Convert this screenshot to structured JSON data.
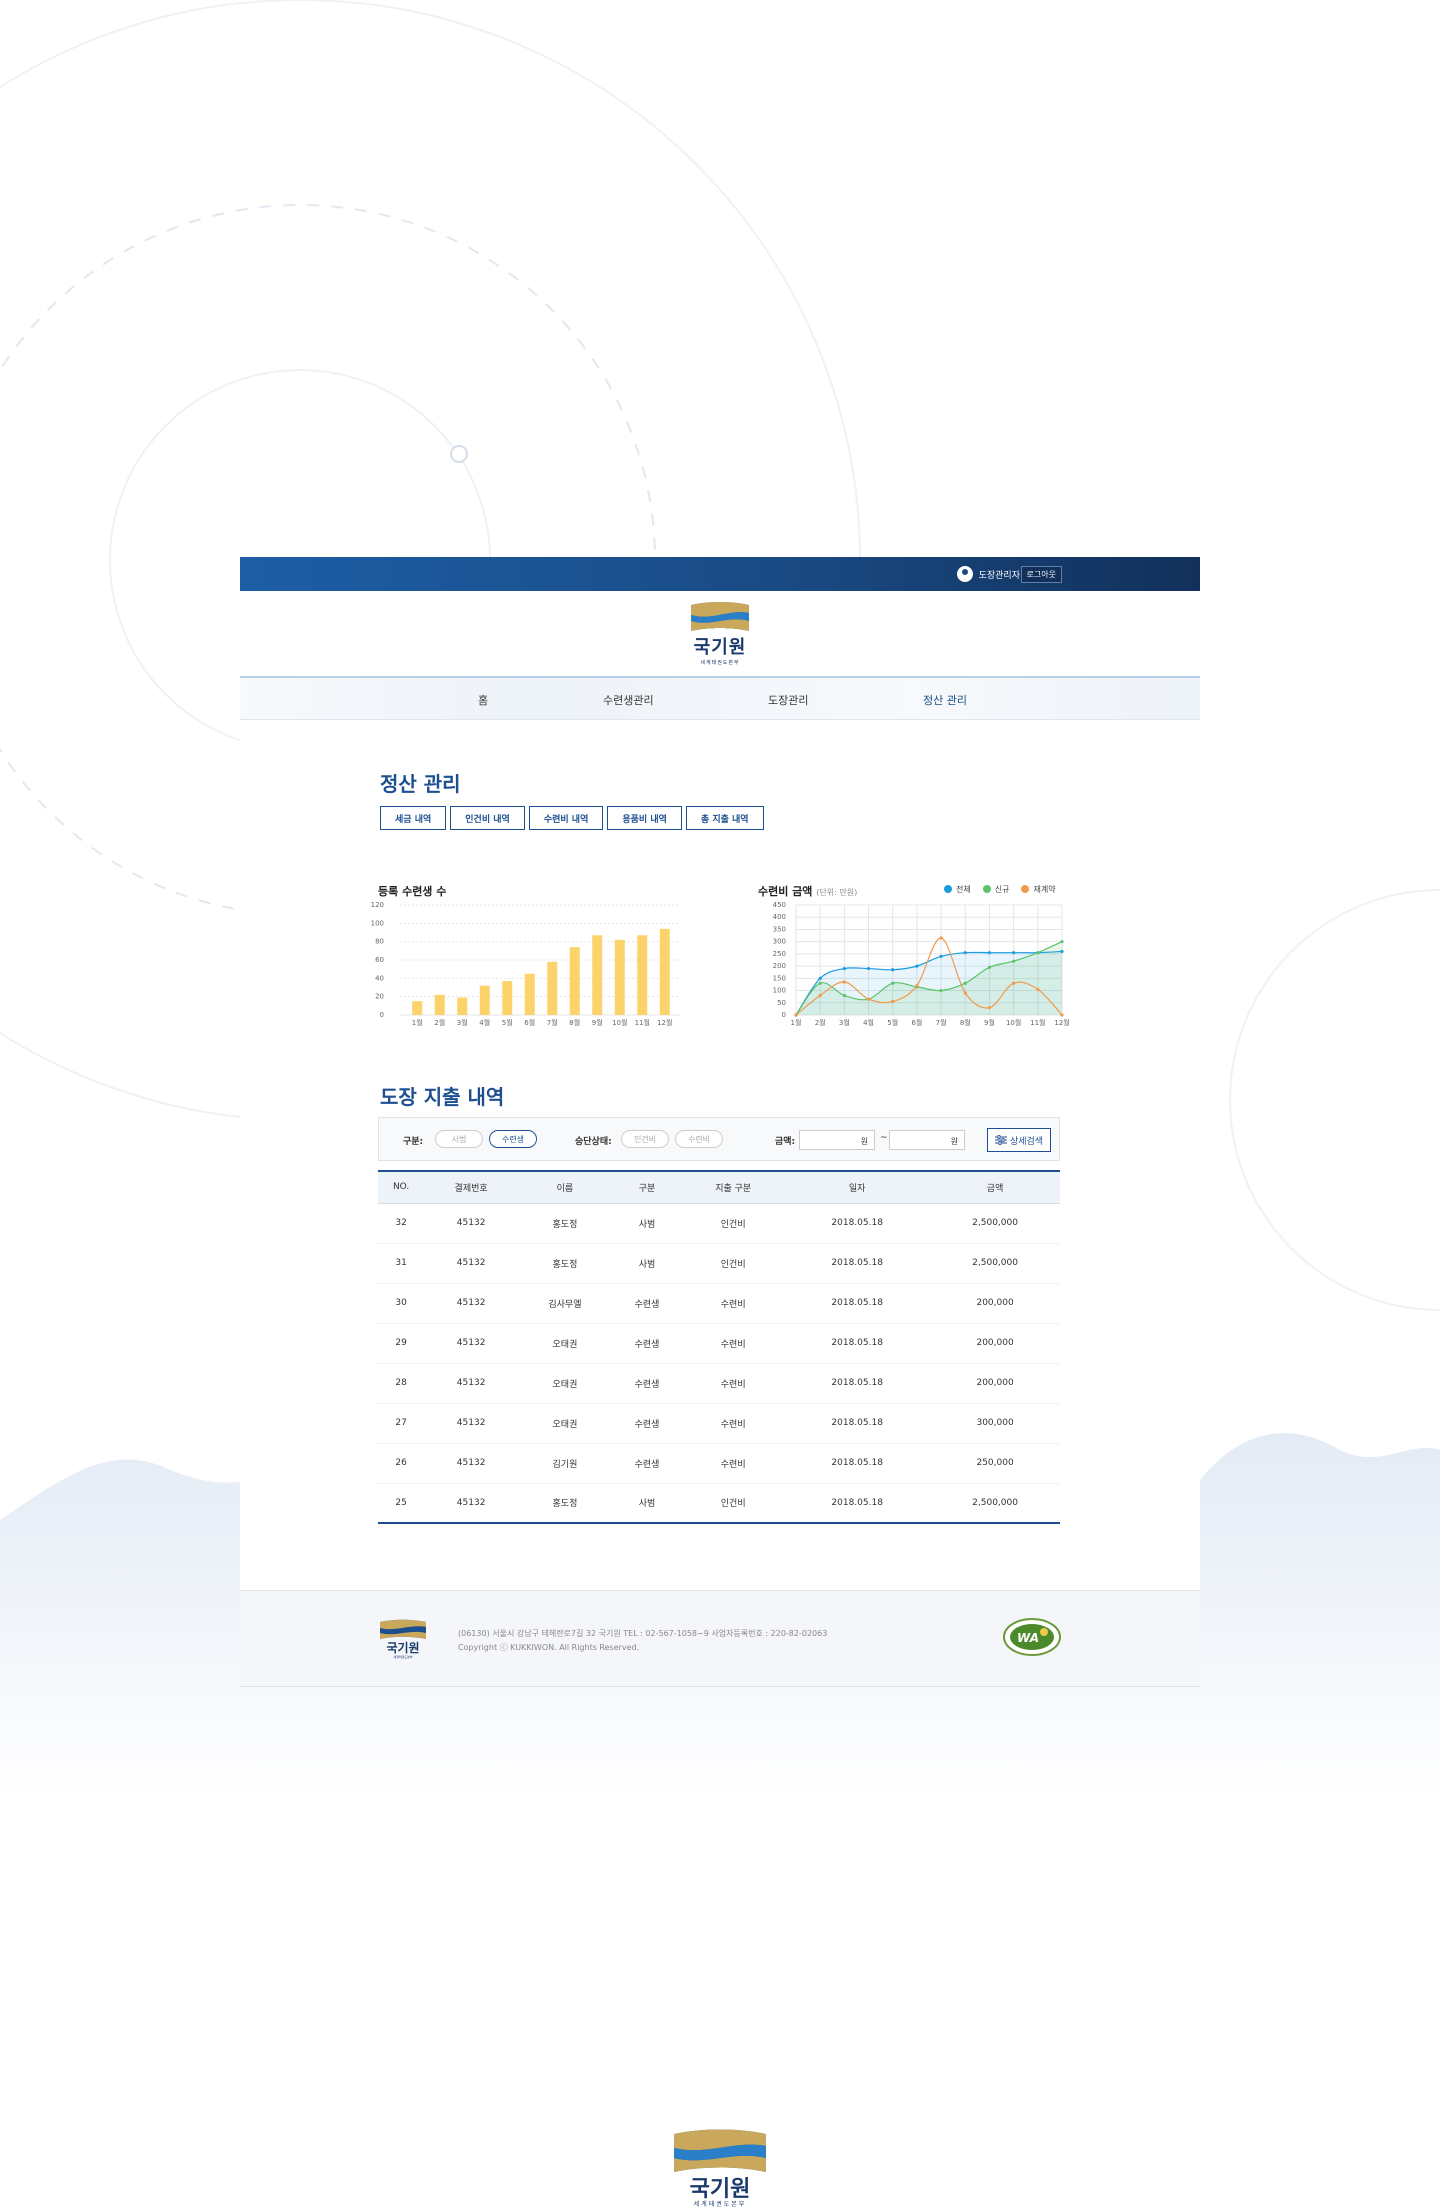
{
  "topbar": {
    "user_name": "도장관리자",
    "logout_label": "로그아웃"
  },
  "logo": {
    "name": "국기원",
    "subtitle": "세계태권도본부"
  },
  "nav": {
    "items": [
      "홈",
      "수련생관리",
      "도장관리",
      "정산 관리"
    ],
    "active": "정산 관리"
  },
  "settlement": {
    "title": "정산 관리",
    "tabs": [
      "세금 내역",
      "인건비 내역",
      "수련비 내역",
      "용품비 내역",
      "총 지출 내역"
    ]
  },
  "charts": {
    "left": {
      "title": "등록 수련생 수"
    },
    "right": {
      "title": "수련비 금액",
      "unit": "(단위: 만원)"
    }
  },
  "chart_data": [
    {
      "type": "bar",
      "title": "등록 수련생 수",
      "categories": [
        "1월",
        "2월",
        "3월",
        "4월",
        "5월",
        "6월",
        "7월",
        "8월",
        "9월",
        "10월",
        "11월",
        "12월"
      ],
      "values": [
        15,
        22,
        19,
        32,
        37,
        45,
        58,
        74,
        87,
        82,
        87,
        94
      ],
      "ylim": [
        0,
        120
      ],
      "yticks": [
        0,
        20,
        40,
        60,
        80,
        100,
        120
      ],
      "color": "#fcd36a"
    },
    {
      "type": "line",
      "title": "수련비 금액",
      "unit": "(단위: 만원)",
      "categories": [
        "1월",
        "2월",
        "3월",
        "4월",
        "5월",
        "6월",
        "7월",
        "8월",
        "9월",
        "10월",
        "11월",
        "12월"
      ],
      "ylim": [
        0,
        450
      ],
      "yticks": [
        0,
        50,
        100,
        150,
        200,
        250,
        300,
        350,
        400,
        450
      ],
      "series": [
        {
          "name": "전체",
          "color": "#1a9ce0",
          "values": [
            0,
            150,
            190,
            190,
            185,
            200,
            240,
            255,
            255,
            255,
            255,
            260
          ]
        },
        {
          "name": "신규",
          "color": "#5cc36a",
          "values": [
            0,
            130,
            80,
            65,
            130,
            115,
            100,
            130,
            195,
            220,
            255,
            300
          ]
        },
        {
          "name": "재계약",
          "color": "#f29a4a",
          "values": [
            0,
            80,
            135,
            65,
            55,
            120,
            315,
            90,
            30,
            130,
            105,
            0
          ]
        }
      ]
    }
  ],
  "expenses": {
    "title": "도장 지출 내역",
    "filter": {
      "category_label": "구분:",
      "category_options": [
        "사범",
        "수련생"
      ],
      "status_label": "승단상태:",
      "status_options": [
        "인건비",
        "수련비"
      ],
      "amount_label": "금액:",
      "amount_unit": "원",
      "tilde": "~",
      "detail_search": "상세검색"
    },
    "columns": [
      "NO.",
      "결제번호",
      "이름",
      "구분",
      "지출 구분",
      "일자",
      "금액"
    ],
    "rows": [
      [
        "32",
        "45132",
        "홍도정",
        "사범",
        "인건비",
        "2018.05.18",
        "2,500,000"
      ],
      [
        "31",
        "45132",
        "홍도정",
        "사범",
        "인건비",
        "2018.05.18",
        "2,500,000"
      ],
      [
        "30",
        "45132",
        "김사무엘",
        "수련생",
        "수련비",
        "2018.05.18",
        "200,000"
      ],
      [
        "29",
        "45132",
        "오태권",
        "수련생",
        "수련비",
        "2018.05.18",
        "200,000"
      ],
      [
        "28",
        "45132",
        "오태권",
        "수련생",
        "수련비",
        "2018.05.18",
        "200,000"
      ],
      [
        "27",
        "45132",
        "오태권",
        "수련생",
        "수련비",
        "2018.05.18",
        "300,000"
      ],
      [
        "26",
        "45132",
        "김기원",
        "수련생",
        "수련비",
        "2018.05.18",
        "250,000"
      ],
      [
        "25",
        "45132",
        "홍도정",
        "사범",
        "인건비",
        "2018.05.18",
        "2,500,000"
      ]
    ]
  },
  "footer": {
    "address": "(06130) 서울시 강남구 테헤란로7길 32 국기원 TEL : 02-567-1058~9 사업자등록번호 : 220-82-02063",
    "copyright": "Copyright ⓒ KUKKIWON. All Rights Reserved.",
    "badge": "WA"
  }
}
